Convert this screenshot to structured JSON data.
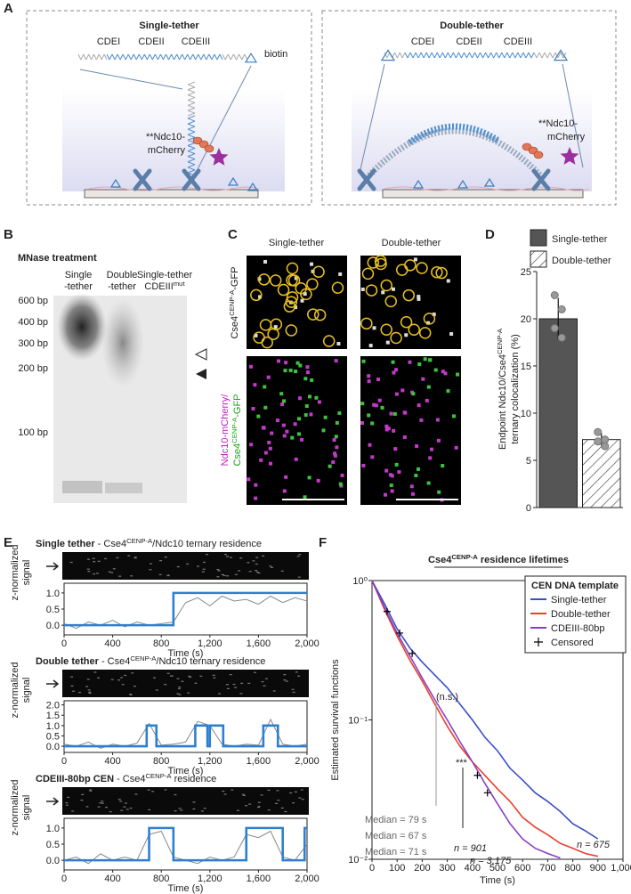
{
  "figure": {
    "panel_labels": [
      "A",
      "B",
      "C",
      "D",
      "E",
      "F"
    ],
    "panel_a": {
      "left_title": "Single-tether",
      "left_regions": [
        "CDEI",
        "CDEII",
        "CDEIII"
      ],
      "biotin": "biotin",
      "left_protein": [
        "**Ndc10-",
        "mCherry"
      ],
      "right_title": "Double-tether",
      "right_regions": [
        "CDEI",
        "CDEII",
        "CDEIII"
      ],
      "right_protein": [
        "**Ndc10-",
        "mCherry"
      ]
    },
    "panel_b": {
      "title": "MNase treatment",
      "lanes": [
        [
          "Single"
        ],
        [
          "-tether"
        ],
        [
          "Double"
        ],
        [
          "-tether"
        ],
        [
          "Single-tether"
        ],
        [
          "CDEIII",
          "mut"
        ]
      ],
      "markers": [
        "600 bp",
        "400 bp",
        "300 bp",
        "200 bp",
        "100 bp"
      ]
    },
    "panel_c": {
      "columns": [
        "Single-tether",
        "Double-tether"
      ],
      "row1": [
        "Cse4",
        "CENP-A",
        "-GFP"
      ],
      "row2": [
        [
          "Ndc10-mCherry/"
        ],
        [
          "Cse4",
          "CENP-A",
          "-GFP"
        ]
      ]
    }
  },
  "chart_data": [
    {
      "type": "bar",
      "categories": [
        "Single-tether",
        "Double-tether"
      ],
      "values": [
        20,
        7.2
      ],
      "errors": [
        2.2,
        0.7
      ],
      "points": [
        [
          22.5,
          21,
          19,
          18
        ],
        [
          8,
          7.2,
          7,
          6.5
        ]
      ],
      "colors": [
        "#555555",
        "#ffffff"
      ],
      "hatch": [
        false,
        true
      ],
      "ylabel": [
        [
          "Endpoint Ndc10/Cse4",
          "CENP-A"
        ],
        [
          "ternary colocalization (%)"
        ]
      ],
      "ylim": [
        0,
        25
      ],
      "yticks": [
        0,
        5,
        10,
        15,
        20,
        25
      ],
      "legend": "top"
    },
    {
      "type": "line",
      "title": [
        "Single tether",
        " - Cse4",
        "CENP-A",
        "/Ndc10 ternary residence"
      ],
      "xlabel": "Time (s)",
      "ylabel": [
        "z-normalized",
        "signal"
      ],
      "xlim": [
        0,
        2000
      ],
      "xticks": [
        0,
        400,
        800,
        {
          "value": 1200,
          "label": "1,200"
        },
        {
          "value": 1600,
          "label": "1,600"
        },
        {
          "value": 2000,
          "label": "2,000"
        }
      ],
      "ylim": [
        -0.3,
        1.3
      ],
      "yticks": [
        {
          "value": 0,
          "label": "0.0"
        },
        {
          "value": 0.5,
          "label": "0.5"
        },
        {
          "value": 1,
          "label": "1.0"
        }
      ],
      "series": [
        {
          "color": "#888888",
          "x": [
            0,
            100,
            200,
            300,
            400,
            500,
            600,
            700,
            800,
            900,
            1000,
            1100,
            1200,
            1300,
            1400,
            1500,
            1600,
            1700,
            1800,
            1900,
            2000
          ],
          "values": [
            0.05,
            -0.1,
            0.1,
            0,
            0.15,
            -0.05,
            0.1,
            0,
            0.05,
            0.1,
            0.7,
            0.85,
            0.6,
            0.9,
            0.75,
            0.8,
            0.65,
            0.9,
            0.7,
            0.85,
            0.75
          ]
        },
        {
          "color": "#2f7fcf",
          "x": [
            0,
            900,
            900,
            2000
          ],
          "values": [
            0,
            0,
            1,
            1
          ]
        }
      ]
    },
    {
      "type": "line",
      "title": [
        "Double tether",
        " - Cse4",
        "CENP-A",
        "/Ndc10 ternary residence"
      ],
      "xlabel": "Time (s)",
      "ylabel": [
        "z-normalized",
        "signal"
      ],
      "xlim": [
        0,
        2000
      ],
      "xticks": [
        0,
        400,
        800,
        {
          "value": 1200,
          "label": "1,200"
        },
        {
          "value": 1600,
          "label": "1,600"
        },
        {
          "value": 2000,
          "label": "2,000"
        }
      ],
      "ylim": [
        -0.3,
        2.2
      ],
      "yticks": [
        {
          "value": 0,
          "label": "0.0"
        },
        {
          "value": 0.5,
          "label": "0.5"
        },
        {
          "value": 1,
          "label": "1.0"
        },
        {
          "value": 1.5,
          "label": "1.5"
        },
        {
          "value": 2,
          "label": "2.0"
        }
      ],
      "series": [
        {
          "color": "#888888",
          "x": [
            0,
            100,
            200,
            300,
            400,
            500,
            600,
            700,
            800,
            900,
            1000,
            1100,
            1200,
            1300,
            1400,
            1500,
            1600,
            1700,
            1800,
            1900,
            2000
          ],
          "values": [
            0.1,
            0,
            0.2,
            -0.1,
            0.1,
            0,
            0.15,
            1.1,
            0.05,
            0.1,
            0.2,
            1.2,
            1.0,
            0.1,
            0,
            0.1,
            0.05,
            1.3,
            0.1,
            0,
            0.1
          ]
        },
        {
          "color": "#2f7fcf",
          "x": [
            0,
            680,
            680,
            760,
            760,
            1080,
            1080,
            1180,
            1180,
            1200,
            1200,
            1310,
            1310,
            1640,
            1640,
            1760,
            1760,
            2000
          ],
          "values": [
            0,
            0,
            1,
            1,
            0,
            0,
            1,
            1,
            0,
            0,
            1,
            1,
            0,
            0,
            1,
            1,
            0,
            0
          ]
        }
      ]
    },
    {
      "type": "line",
      "title": [
        "CDEIII-80bp CEN",
        " - Cse4",
        "CENP-A",
        " residence"
      ],
      "xlabel": "Time (s)",
      "ylabel": [
        "z-normalized",
        "signal"
      ],
      "xlim": [
        0,
        2000
      ],
      "xticks": [
        0,
        400,
        800,
        {
          "value": 1200,
          "label": "1,200"
        },
        {
          "value": 1600,
          "label": "1,600"
        },
        {
          "value": 2000,
          "label": "2,000"
        }
      ],
      "ylim": [
        -0.3,
        1.3
      ],
      "yticks": [
        {
          "value": 0,
          "label": "0.0"
        },
        {
          "value": 0.5,
          "label": "0.5"
        },
        {
          "value": 1,
          "label": "1.0"
        }
      ],
      "series": [
        {
          "color": "#888888",
          "x": [
            0,
            100,
            200,
            300,
            400,
            500,
            600,
            700,
            800,
            900,
            1000,
            1100,
            1200,
            1300,
            1400,
            1500,
            1600,
            1700,
            1800,
            1900,
            2000
          ],
          "values": [
            0,
            0.1,
            -0.1,
            0.2,
            0,
            0.1,
            0,
            0.8,
            0.9,
            0.1,
            0,
            -0.1,
            0.1,
            0,
            0.1,
            0.8,
            0.7,
            0.9,
            0.1,
            0,
            0.5
          ]
        },
        {
          "color": "#2f7fcf",
          "x": [
            0,
            700,
            700,
            900,
            900,
            1500,
            1500,
            1800,
            1800,
            1980,
            1980,
            2000
          ],
          "values": [
            0,
            0,
            1,
            1,
            0,
            0,
            1,
            1,
            0,
            0,
            1,
            1
          ]
        }
      ]
    },
    {
      "type": "survival",
      "title": [
        "Cse4",
        "CENP-A",
        " residence lifetimes"
      ],
      "xlabel": "Time (s)",
      "ylabel": "Estimated survival functions",
      "log_y": true,
      "xlim": [
        0,
        1000
      ],
      "xticks": [
        0,
        100,
        200,
        300,
        400,
        500,
        600,
        700,
        800,
        900,
        {
          "value": 1000,
          "label": "1,000"
        }
      ],
      "ylim": [
        0.01,
        1
      ],
      "yticks": [
        {
          "value": 1,
          "label": "10⁰"
        },
        {
          "value": 0.1,
          "label": "10⁻¹"
        },
        {
          "value": 0.01,
          "label": "10⁻²"
        }
      ],
      "legend_title": "CEN DNA template",
      "legend": "upper right",
      "x": [
        0,
        50,
        100,
        150,
        200,
        250,
        300,
        350,
        400,
        450,
        500,
        550,
        600,
        650,
        700,
        750,
        800,
        850,
        900
      ],
      "series": [
        {
          "name": "Single-tether",
          "color": "#3a4fc4",
          "values": [
            1,
            0.68,
            0.45,
            0.33,
            0.26,
            0.21,
            0.17,
            0.13,
            0.1,
            0.075,
            0.06,
            0.045,
            0.037,
            0.03,
            0.026,
            0.022,
            0.018,
            0.016,
            0.014
          ]
        },
        {
          "name": "Double-tether",
          "color": "#e8412c",
          "values": [
            1,
            0.62,
            0.4,
            0.27,
            0.19,
            0.13,
            0.09,
            0.065,
            0.05,
            0.04,
            0.032,
            0.026,
            0.02,
            0.017,
            0.015,
            0.013,
            0.012,
            0.011,
            0.0105
          ]
        },
        {
          "name": "CDEIII-80bp",
          "color": "#8a3fc2",
          "values": [
            1,
            0.64,
            0.42,
            0.29,
            0.2,
            0.14,
            0.1,
            0.07,
            0.05,
            0.035,
            0.025,
            0.018,
            0.014,
            0.012,
            0.011,
            0.0102,
            null,
            null,
            null
          ]
        },
        {
          "name": "Censored",
          "color": "#000000",
          "marker": "+",
          "x": [
            60,
            110,
            160,
            420,
            460
          ],
          "values": [
            0.6,
            0.42,
            0.3,
            0.04,
            0.03
          ]
        }
      ],
      "medians": [
        "Median = 79 s",
        "Median = 67 s",
        "Median = 71 s"
      ],
      "n_labels": [
        "n = 675",
        "n = 901",
        "n = 3,175"
      ],
      "annotations": [
        "(n.s.)",
        "***"
      ]
    }
  ]
}
